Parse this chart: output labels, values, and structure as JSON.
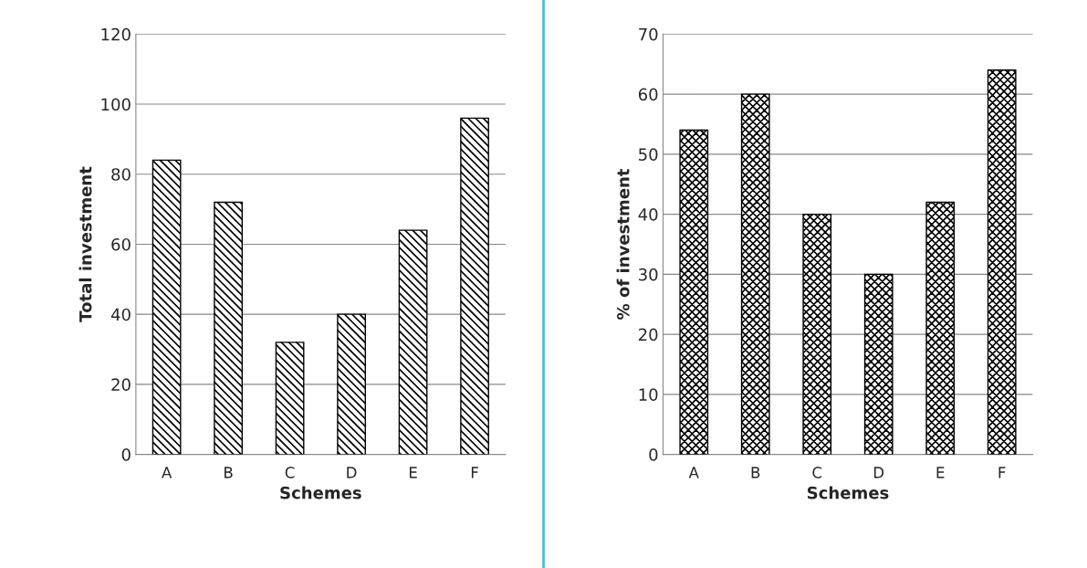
{
  "chart_data": [
    {
      "type": "bar",
      "xlabel": "Schemes",
      "ylabel": "Total investment",
      "categories": [
        "A",
        "B",
        "C",
        "D",
        "E",
        "F"
      ],
      "values": [
        84,
        72,
        32,
        40,
        64,
        96
      ],
      "color": "#000000",
      "ylim": [
        0,
        120
      ],
      "yticks": [
        0,
        20,
        40,
        60,
        80,
        100,
        120
      ],
      "grid": "y",
      "legend": false
    },
    {
      "type": "bar",
      "xlabel": "Schemes",
      "ylabel": "% of investment",
      "categories": [
        "A",
        "B",
        "C",
        "D",
        "E",
        "F"
      ],
      "values": [
        54,
        60,
        40,
        30,
        42,
        64
      ],
      "color": "#000000",
      "ylim": [
        0,
        70
      ],
      "yticks": [
        0,
        10,
        20,
        30,
        40,
        50,
        60,
        70
      ],
      "grid": "y",
      "legend": false
    }
  ]
}
